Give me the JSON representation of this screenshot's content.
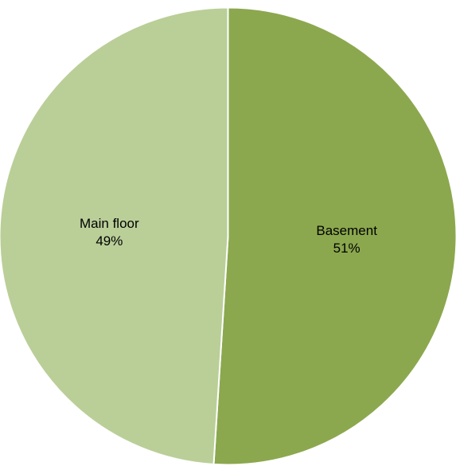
{
  "chart_data": {
    "type": "pie",
    "title": "",
    "legend": "none",
    "slices": [
      {
        "label": "Basement",
        "value": 51,
        "display_value": "51%",
        "color": "#8ba84e"
      },
      {
        "label": "Main floor",
        "value": 49,
        "display_value": "49%",
        "color": "#bacf98"
      }
    ]
  }
}
